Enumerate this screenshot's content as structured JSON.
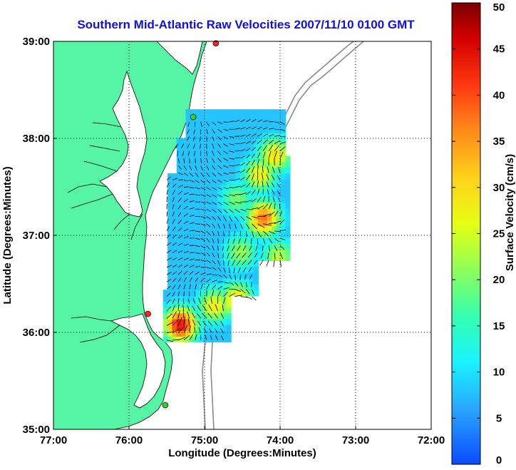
{
  "chart_data": {
    "type": "heatmap",
    "title": "Southern Mid-Atlantic Raw Velocities 2007/11/10 0100 GMT",
    "xlabel": "Longitude (Degrees:Minutes)",
    "ylabel": "Latitude (Degrees:Minutes)",
    "xlim": [
      -77,
      -72
    ],
    "ylim": [
      35,
      39
    ],
    "x_ticks": [
      {
        "value": -77,
        "label": "77:00"
      },
      {
        "value": -76,
        "label": "76:00"
      },
      {
        "value": -75,
        "label": "75:00"
      },
      {
        "value": -74,
        "label": "74:00"
      },
      {
        "value": -73,
        "label": "73:00"
      },
      {
        "value": -72,
        "label": "72:00"
      }
    ],
    "y_ticks": [
      {
        "value": 35,
        "label": "35:00"
      },
      {
        "value": 36,
        "label": "36:00"
      },
      {
        "value": 37,
        "label": "37:00"
      },
      {
        "value": 38,
        "label": "38:00"
      },
      {
        "value": 39,
        "label": "39:00"
      }
    ],
    "grid": true,
    "colorbar": {
      "label": "Surface Velocity (cm/s)",
      "min": 0,
      "max": 50,
      "ticks": [
        "0",
        "5",
        "10",
        "15",
        "20",
        "25",
        "30",
        "35",
        "40",
        "45",
        "50"
      ]
    },
    "velocity_hotspots": [
      {
        "lon": -74.25,
        "lat": 37.15,
        "speed": 38
      },
      {
        "lon": -74.3,
        "lat": 37.6,
        "speed": 28
      },
      {
        "lon": -74.1,
        "lat": 37.8,
        "speed": 30
      },
      {
        "lon": -75.35,
        "lat": 36.05,
        "speed": 45
      },
      {
        "lon": -74.6,
        "lat": 36.3,
        "speed": 32
      },
      {
        "lon": -74.9,
        "lat": 36.25,
        "speed": 28
      },
      {
        "lon": -74.05,
        "lat": 36.75,
        "speed": 24
      },
      {
        "lon": -74.55,
        "lat": 36.8,
        "speed": 22
      },
      {
        "lon": -74.6,
        "lat": 37.35,
        "speed": 20
      },
      {
        "lon": -75.0,
        "lat": 37.1,
        "speed": 8
      },
      {
        "lon": -75.1,
        "lat": 37.7,
        "speed": 7
      }
    ],
    "station_markers": [
      {
        "lon": -74.85,
        "lat": 38.98,
        "color": "#ff2020"
      },
      {
        "lon": -75.15,
        "lat": 38.22,
        "color": "#30d030"
      },
      {
        "lon": -75.75,
        "lat": 36.19,
        "color": "#ff2020"
      },
      {
        "lon": -75.52,
        "lat": 35.25,
        "color": "#30d030"
      }
    ],
    "land_color": "#55f5a5"
  }
}
